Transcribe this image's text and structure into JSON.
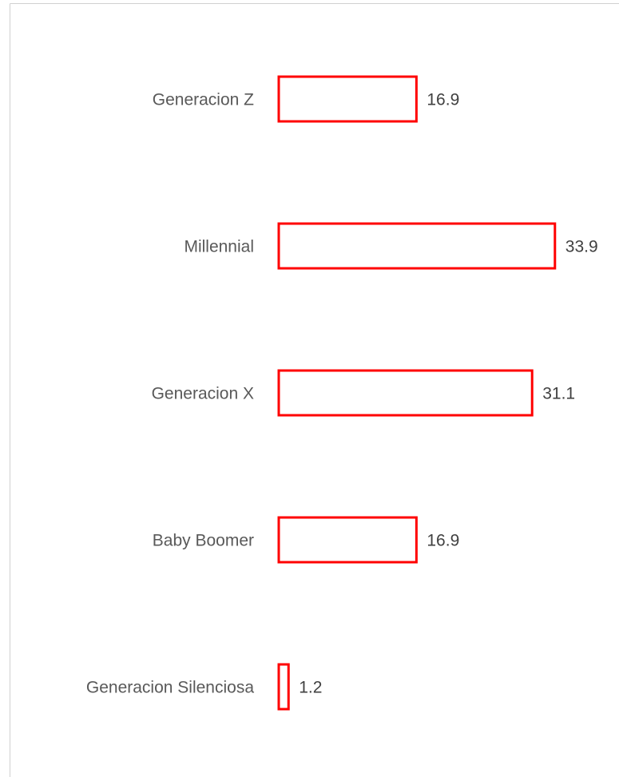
{
  "chart_data": {
    "type": "bar",
    "orientation": "horizontal",
    "categories": [
      "Generacion Z",
      "Millennial",
      "Generacion X",
      "Baby Boomer",
      "Generacion Silenciosa"
    ],
    "values": [
      16.9,
      33.9,
      31.1,
      16.9,
      1.2
    ],
    "color": "#ff0000"
  }
}
